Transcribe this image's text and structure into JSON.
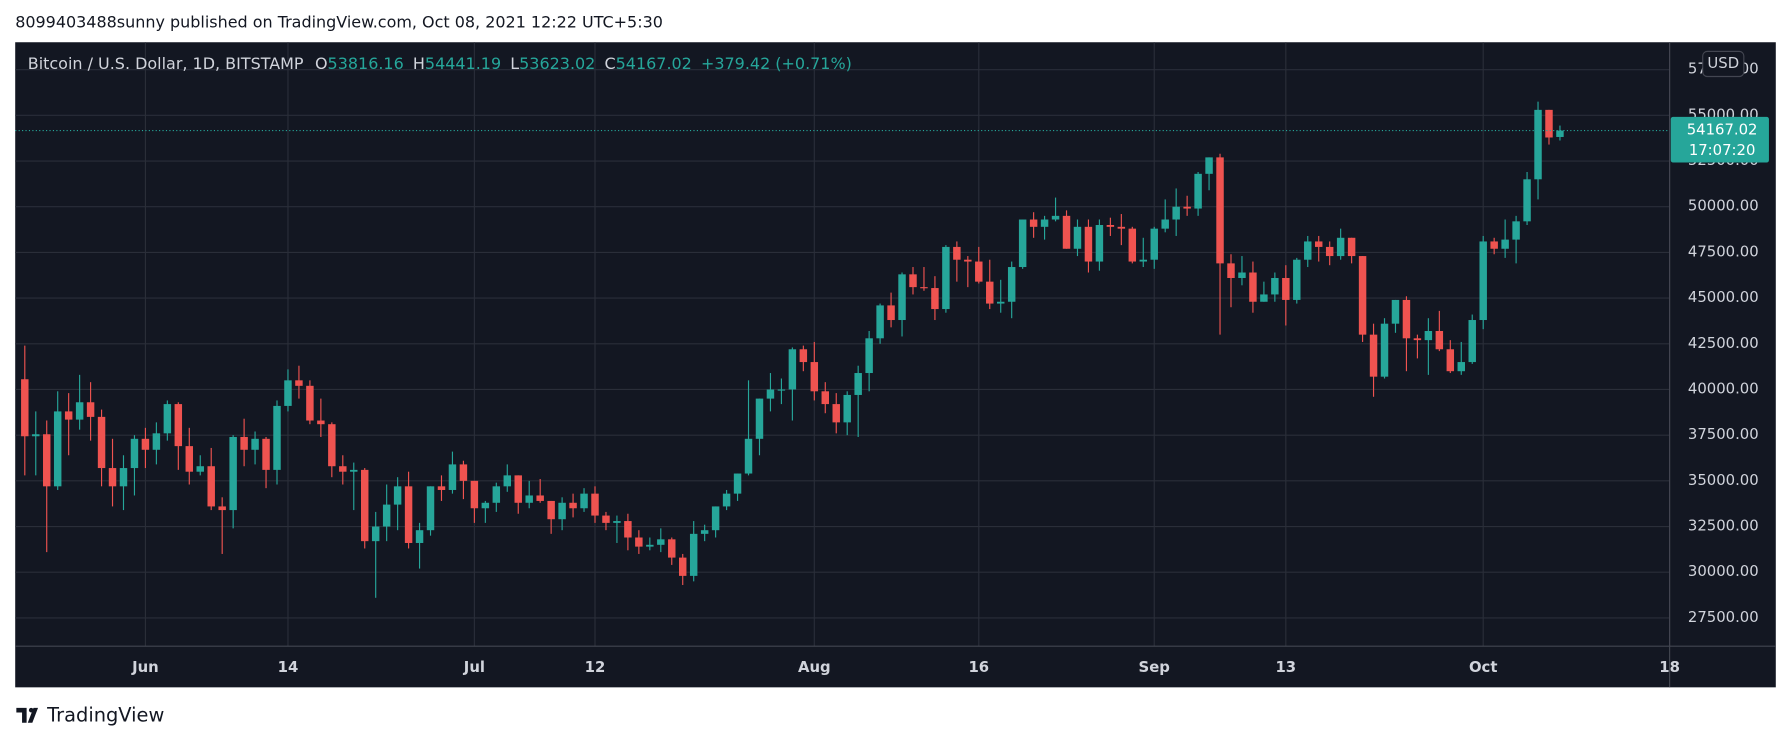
{
  "header": {
    "text": "8099403488sunny published on TradingView.com, Oct 08, 2021 12:22 UTC+5:30"
  },
  "footer": {
    "brand": "TradingView"
  },
  "chart_data": {
    "type": "candlestick",
    "symbol": "Bitcoin / U.S. Dollar, 1D, BITSTAMP",
    "ohlc_labels": [
      "O",
      "H",
      "L",
      "C"
    ],
    "change": "+379.42 (+0.71%)",
    "countdown": "17:07:20",
    "currency": "USD",
    "up_color": "#26a69a",
    "down_color": "#ef5350",
    "grid": true,
    "x": [
      "2021-05-21",
      "2021-05-22",
      "2021-05-23",
      "2021-05-24",
      "2021-05-25",
      "2021-05-26",
      "2021-05-27",
      "2021-05-28",
      "2021-05-29",
      "2021-05-30",
      "2021-05-31",
      "2021-06-01",
      "2021-06-02",
      "2021-06-03",
      "2021-06-04",
      "2021-06-05",
      "2021-06-06",
      "2021-06-07",
      "2021-06-08",
      "2021-06-09",
      "2021-06-10",
      "2021-06-11",
      "2021-06-12",
      "2021-06-13",
      "2021-06-14",
      "2021-06-15",
      "2021-06-16",
      "2021-06-17",
      "2021-06-18",
      "2021-06-19",
      "2021-06-20",
      "2021-06-21",
      "2021-06-22",
      "2021-06-23",
      "2021-06-24",
      "2021-06-25",
      "2021-06-26",
      "2021-06-27",
      "2021-06-28",
      "2021-06-29",
      "2021-06-30",
      "2021-07-01",
      "2021-07-02",
      "2021-07-03",
      "2021-07-04",
      "2021-07-05",
      "2021-07-06",
      "2021-07-07",
      "2021-07-08",
      "2021-07-09",
      "2021-07-10",
      "2021-07-11",
      "2021-07-12",
      "2021-07-13",
      "2021-07-14",
      "2021-07-15",
      "2021-07-16",
      "2021-07-17",
      "2021-07-18",
      "2021-07-19",
      "2021-07-20",
      "2021-07-21",
      "2021-07-22",
      "2021-07-23",
      "2021-07-24",
      "2021-07-25",
      "2021-07-26",
      "2021-07-27",
      "2021-07-28",
      "2021-07-29",
      "2021-07-30",
      "2021-07-31",
      "2021-08-01",
      "2021-08-02",
      "2021-08-03",
      "2021-08-04",
      "2021-08-05",
      "2021-08-06",
      "2021-08-07",
      "2021-08-08",
      "2021-08-09",
      "2021-08-10",
      "2021-08-11",
      "2021-08-12",
      "2021-08-13",
      "2021-08-14",
      "2021-08-15",
      "2021-08-16",
      "2021-08-17",
      "2021-08-18",
      "2021-08-19",
      "2021-08-20",
      "2021-08-21",
      "2021-08-22",
      "2021-08-23",
      "2021-08-24",
      "2021-08-25",
      "2021-08-26",
      "2021-08-27",
      "2021-08-28",
      "2021-08-29",
      "2021-08-30",
      "2021-08-31",
      "2021-09-01",
      "2021-09-02",
      "2021-09-03",
      "2021-09-04",
      "2021-09-05",
      "2021-09-06",
      "2021-09-07",
      "2021-09-08",
      "2021-09-09",
      "2021-09-10",
      "2021-09-11",
      "2021-09-12",
      "2021-09-13",
      "2021-09-14",
      "2021-09-15",
      "2021-09-16",
      "2021-09-17",
      "2021-09-18",
      "2021-09-19",
      "2021-09-20",
      "2021-09-21",
      "2021-09-22",
      "2021-09-23",
      "2021-09-24",
      "2021-09-25",
      "2021-09-26",
      "2021-09-27",
      "2021-09-28",
      "2021-09-29",
      "2021-09-30",
      "2021-10-01",
      "2021-10-02",
      "2021-10-03",
      "2021-10-04",
      "2021-10-05",
      "2021-10-06",
      "2021-10-07",
      "2021-10-08"
    ],
    "open": [
      40560,
      37440,
      37550,
      34700,
      38800,
      38350,
      39300,
      38500,
      35700,
      34700,
      35700,
      37300,
      36700,
      37600,
      39200,
      36900,
      35500,
      35800,
      33600,
      33400,
      37400,
      36700,
      37300,
      35600,
      39100,
      40500,
      40200,
      38300,
      38100,
      35800,
      35500,
      35600,
      31700,
      32500,
      33700,
      34700,
      31600,
      32300,
      34700,
      34500,
      35900,
      35000,
      33500,
      33800,
      34700,
      35300,
      33800,
      34200,
      33900,
      32900,
      33800,
      33500,
      34300,
      33100,
      32700,
      32800,
      31900,
      31400,
      31500,
      31800,
      30800,
      29800,
      32100,
      32300,
      33600,
      34300,
      35400,
      37300,
      39500,
      40000,
      40000,
      42200,
      41500,
      39900,
      39200,
      38200,
      39700,
      40900,
      42800,
      44600,
      43800,
      46300,
      45600,
      45550,
      44400,
      47800,
      47100,
      47000,
      45900,
      44700,
      44800,
      46700,
      49300,
      48900,
      49300,
      49500,
      47700,
      48900,
      47000,
      49000,
      48900,
      48800,
      47000,
      47100,
      48800,
      49300,
      50000,
      49900,
      51800,
      52700,
      46900,
      46100,
      46400,
      44800,
      45200,
      46100,
      44900,
      47100,
      48100,
      47800,
      47300,
      48300,
      47300,
      43000,
      40700,
      43600,
      44900,
      42800,
      42700,
      43200,
      42200,
      41000,
      41500,
      43800,
      48100,
      47700,
      48200,
      49200,
      51500,
      55300,
      53816.16
    ],
    "high": [
      42400,
      38800,
      38300,
      39900,
      39800,
      40800,
      40400,
      38900,
      37300,
      36400,
      37500,
      37900,
      38200,
      39400,
      39300,
      37900,
      36400,
      36800,
      34100,
      37500,
      38400,
      37700,
      37400,
      39400,
      41100,
      41300,
      40500,
      39500,
      38200,
      36400,
      36000,
      35700,
      33300,
      34800,
      35200,
      35500,
      32700,
      34700,
      35300,
      36600,
      36100,
      35000,
      33900,
      34900,
      35900,
      35300,
      35000,
      35100,
      33900,
      34100,
      34300,
      34600,
      34700,
      33300,
      33100,
      33200,
      32300,
      31900,
      32400,
      31900,
      31000,
      32800,
      32600,
      33600,
      34500,
      35400,
      40500,
      39500,
      40900,
      40600,
      42300,
      42400,
      42600,
      40400,
      39800,
      39900,
      41300,
      43200,
      44700,
      45300,
      46400,
      46700,
      46700,
      46200,
      47900,
      48100,
      47300,
      47800,
      47100,
      46000,
      47000,
      49300,
      49700,
      49500,
      50500,
      49800,
      49300,
      49300,
      49300,
      49400,
      49600,
      48900,
      48300,
      48900,
      50400,
      51000,
      50600,
      51900,
      52700,
      52900,
      47400,
      47300,
      47000,
      45900,
      46400,
      46800,
      47200,
      48400,
      48400,
      48100,
      48800,
      48300,
      47300,
      43600,
      43900,
      44900,
      45100,
      43000,
      43900,
      44300,
      42700,
      42600,
      44100,
      48400,
      48300,
      49300,
      49500,
      51900,
      55750,
      55300,
      54441.19
    ],
    "low": [
      35300,
      35300,
      31100,
      34500,
      36400,
      37800,
      37200,
      34700,
      33600,
      33400,
      34200,
      35700,
      35900,
      37200,
      35600,
      34800,
      35300,
      33400,
      31000,
      32400,
      35800,
      35900,
      34600,
      34800,
      38800,
      39500,
      38100,
      37400,
      35200,
      34800,
      33400,
      31300,
      28600,
      31700,
      32300,
      31300,
      30200,
      32000,
      33900,
      34300,
      34000,
      32700,
      32700,
      33300,
      34400,
      33200,
      33500,
      33800,
      32100,
      32300,
      33000,
      33300,
      32700,
      32300,
      31600,
      31200,
      31000,
      31200,
      31100,
      30400,
      29300,
      29500,
      31700,
      31900,
      33400,
      33900,
      35300,
      36400,
      38800,
      39200,
      38300,
      41000,
      39400,
      38700,
      37600,
      37500,
      37400,
      39900,
      42500,
      43400,
      42900,
      45200,
      45400,
      43800,
      44200,
      45900,
      45600,
      45800,
      44400,
      44200,
      43900,
      46600,
      48300,
      48200,
      49200,
      47700,
      47300,
      46400,
      46500,
      48400,
      47900,
      46900,
      46700,
      46600,
      48600,
      48400,
      49500,
      49500,
      50900,
      43000,
      44500,
      45700,
      44200,
      44800,
      44800,
      43500,
      44700,
      46700,
      47000,
      46800,
      47100,
      46900,
      42600,
      39600,
      40600,
      43100,
      41000,
      41700,
      40800,
      42100,
      40900,
      40800,
      41400,
      43300,
      47400,
      47200,
      46900,
      49000,
      50400,
      53400,
      53623.02
    ],
    "close": [
      37440,
      37550,
      34700,
      38800,
      38350,
      39300,
      38500,
      35700,
      34700,
      35700,
      37300,
      36700,
      37600,
      39200,
      36900,
      35500,
      35800,
      33600,
      33400,
      37400,
      36700,
      37300,
      35600,
      39100,
      40500,
      40200,
      38300,
      38100,
      35800,
      35500,
      35600,
      31700,
      32500,
      33700,
      34700,
      31600,
      32300,
      34700,
      34500,
      35900,
      35000,
      33500,
      33800,
      34700,
      35300,
      33800,
      34200,
      33900,
      32900,
      33800,
      33500,
      34300,
      33100,
      32700,
      32800,
      31900,
      31400,
      31500,
      31800,
      30800,
      29800,
      32100,
      32300,
      33600,
      34300,
      35400,
      37300,
      39500,
      40000,
      40000,
      42200,
      41500,
      39900,
      39200,
      38200,
      39700,
      40900,
      42800,
      44600,
      43800,
      46300,
      45600,
      45550,
      44400,
      47800,
      47100,
      47000,
      45900,
      44700,
      44800,
      46700,
      49300,
      48900,
      49300,
      49500,
      47700,
      48900,
      47000,
      49000,
      48900,
      48800,
      47000,
      47100,
      48800,
      49300,
      50000,
      49900,
      51800,
      52700,
      46900,
      46100,
      46400,
      44800,
      45200,
      46100,
      44900,
      47100,
      48100,
      47800,
      47300,
      48300,
      47300,
      43000,
      40700,
      43600,
      44900,
      42800,
      42700,
      43200,
      42200,
      41000,
      41500,
      43800,
      48100,
      47700,
      48200,
      49200,
      51500,
      55300,
      53787.6,
      54167.02
    ],
    "xlim": [
      "2021-05-20T15:00:00Z",
      "2021-10-18T12:00:00Z"
    ],
    "xticks": [
      {
        "value": "2021-06-01",
        "label": "Jun"
      },
      {
        "value": "2021-06-14",
        "label": "14"
      },
      {
        "value": "2021-07-01",
        "label": "Jul"
      },
      {
        "value": "2021-07-12",
        "label": "12"
      },
      {
        "value": "2021-08-01",
        "label": "Aug"
      },
      {
        "value": "2021-08-16",
        "label": "16"
      },
      {
        "value": "2021-09-01",
        "label": "Sep"
      },
      {
        "value": "2021-09-13",
        "label": "13"
      },
      {
        "value": "2021-10-01",
        "label": "Oct"
      },
      {
        "value": "2021-10-18",
        "label": "18"
      }
    ],
    "ylim": [
      25950,
      59000
    ],
    "yticks": [
      {
        "value": 27500,
        "label": "27500.00"
      },
      {
        "value": 30000,
        "label": "30000.00"
      },
      {
        "value": 32500,
        "label": "32500.00"
      },
      {
        "value": 35000,
        "label": "35000.00"
      },
      {
        "value": 37500,
        "label": "37500.00"
      },
      {
        "value": 40000,
        "label": "40000.00"
      },
      {
        "value": 42500,
        "label": "42500.00"
      },
      {
        "value": 45000,
        "label": "45000.00"
      },
      {
        "value": 47500,
        "label": "47500.00"
      },
      {
        "value": 50000,
        "label": "50000.00"
      },
      {
        "value": 52500,
        "label": "52500.00"
      },
      {
        "value": 55000,
        "label": "55000.00"
      },
      {
        "value": 57500,
        "label": "57500.00"
      }
    ]
  }
}
